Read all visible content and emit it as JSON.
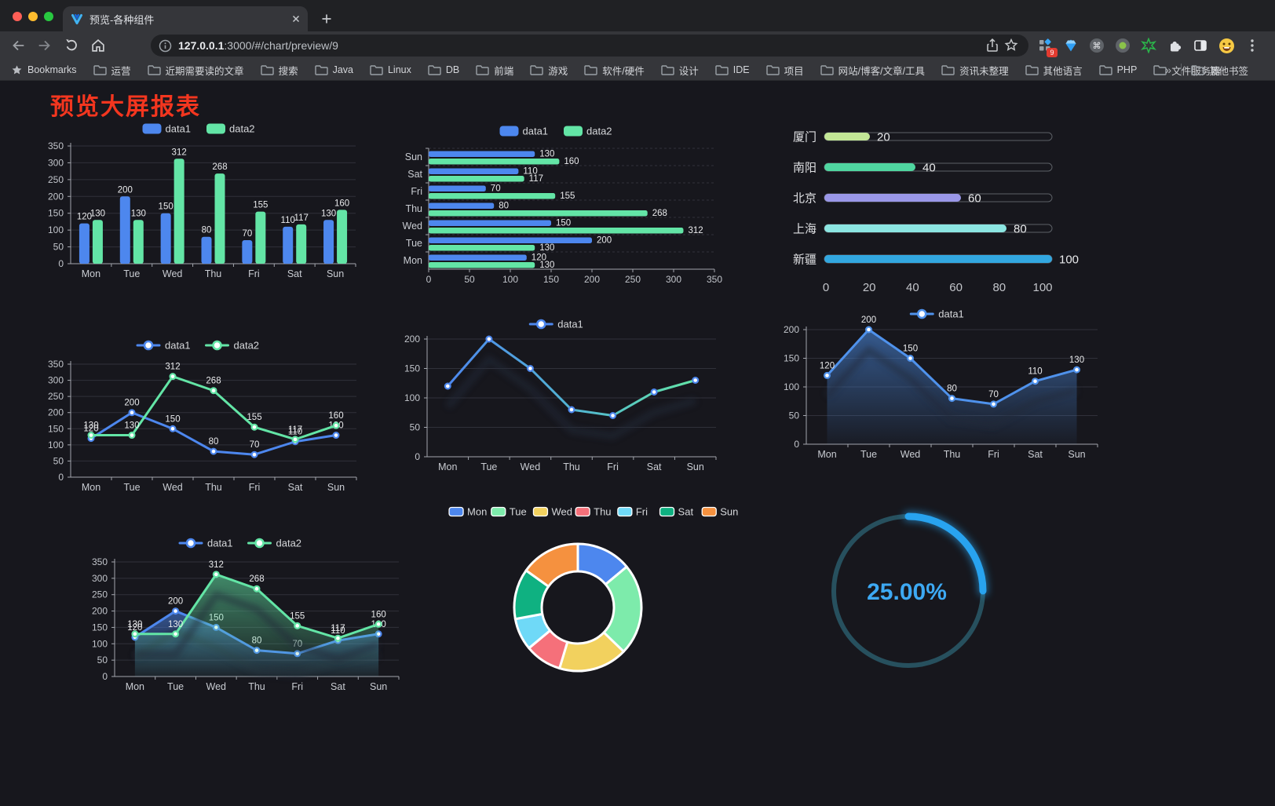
{
  "browser": {
    "tab_title": "预览-各种组件",
    "url_host": "127.0.0.1",
    "url_rest": ":3000/#/chart/preview/9",
    "extension_badge": "9",
    "bookmarks": [
      "Bookmarks",
      "运营",
      "近期需要读的文章",
      "搜索",
      "Java",
      "Linux",
      "DB",
      "前端",
      "游戏",
      "软件/硬件",
      "设计",
      "IDE",
      "项目",
      "网站/博客/文章/工具",
      "资讯未整理",
      "其他语言",
      "PHP",
      "文件服务器"
    ],
    "bookmarks_overflow": "»",
    "other_bookmarks": "其他书签"
  },
  "page": {
    "title": "预览大屏报表",
    "title_color": "#f3361f",
    "background": "#17171d"
  },
  "chart_data": [
    {
      "id": "grouped-bars",
      "type": "bar",
      "categories": [
        "Mon",
        "Tue",
        "Wed",
        "Thu",
        "Fri",
        "Sat",
        "Sun"
      ],
      "series": [
        {
          "name": "data1",
          "color": "#4d87ee",
          "values": [
            120,
            200,
            150,
            80,
            70,
            110,
            130
          ]
        },
        {
          "name": "data2",
          "color": "#63e5a6",
          "values": [
            130,
            130,
            312,
            268,
            155,
            117,
            160
          ]
        }
      ],
      "ymax": 350,
      "ystep": 50,
      "value_labels": true
    },
    {
      "id": "horizontal-bars",
      "type": "hbar",
      "categories": [
        "Mon",
        "Tue",
        "Wed",
        "Thu",
        "Fri",
        "Sat",
        "Sun"
      ],
      "series": [
        {
          "name": "data1",
          "color": "#4d87ee",
          "values": [
            120,
            200,
            150,
            80,
            70,
            110,
            130
          ]
        },
        {
          "name": "data2",
          "color": "#63e5a6",
          "values": [
            130,
            130,
            312,
            268,
            155,
            117,
            160
          ]
        }
      ],
      "xmax": 350,
      "xstep": 50,
      "value_labels": true
    },
    {
      "id": "city-progress",
      "type": "progress",
      "items": [
        {
          "label": "厦门",
          "value": 20,
          "color": "#c3e796"
        },
        {
          "label": "南阳",
          "value": 40,
          "color": "#4fd6a0"
        },
        {
          "label": "北京",
          "value": 60,
          "color": "#9a97e8"
        },
        {
          "label": "上海",
          "value": 80,
          "color": "#8ce6e2"
        },
        {
          "label": "新疆",
          "value": 100,
          "color": "#32a7e0"
        }
      ],
      "max": 100,
      "ticks": [
        0,
        20,
        40,
        60,
        80,
        100
      ]
    },
    {
      "id": "dual-line",
      "type": "line",
      "categories": [
        "Mon",
        "Tue",
        "Wed",
        "Thu",
        "Fri",
        "Sat",
        "Sun"
      ],
      "series": [
        {
          "name": "data1",
          "color": "#4d87ee",
          "values": [
            120,
            200,
            150,
            80,
            70,
            110,
            130
          ]
        },
        {
          "name": "data2",
          "color": "#63e5a6",
          "values": [
            130,
            130,
            312,
            268,
            155,
            117,
            160
          ]
        }
      ],
      "ymax": 350,
      "ystep": 50,
      "value_labels": true
    },
    {
      "id": "gradient-line",
      "type": "line",
      "categories": [
        "Mon",
        "Tue",
        "Wed",
        "Thu",
        "Fri",
        "Sat",
        "Sun"
      ],
      "series": [
        {
          "name": "data1",
          "color": "#4d87ee",
          "color2": "#63e5a6",
          "gradient": true,
          "values": [
            120,
            200,
            150,
            80,
            70,
            110,
            130
          ]
        }
      ],
      "ymax": 200,
      "ystep": 50,
      "value_labels": false,
      "shadow": true
    },
    {
      "id": "area-line",
      "type": "line",
      "categories": [
        "Mon",
        "Tue",
        "Wed",
        "Thu",
        "Fri",
        "Sat",
        "Sun"
      ],
      "series": [
        {
          "name": "data1",
          "color": "#4f92ec",
          "area": true,
          "values": [
            120,
            200,
            150,
            80,
            70,
            110,
            130
          ]
        }
      ],
      "ymax": 200,
      "ystep": 50,
      "value_labels": true,
      "shadow": true
    },
    {
      "id": "dual-area",
      "type": "line",
      "categories": [
        "Mon",
        "Tue",
        "Wed",
        "Thu",
        "Fri",
        "Sat",
        "Sun"
      ],
      "series": [
        {
          "name": "data1",
          "color": "#4d87ee",
          "area": true,
          "values": [
            120,
            200,
            150,
            80,
            70,
            110,
            130
          ]
        },
        {
          "name": "data2",
          "color": "#63e5a6",
          "area": true,
          "values": [
            130,
            130,
            312,
            268,
            155,
            117,
            160
          ]
        }
      ],
      "ymax": 350,
      "ystep": 50,
      "value_labels": true,
      "shadow": true
    },
    {
      "id": "week-donut",
      "type": "pie",
      "items": [
        {
          "label": "Mon",
          "value": 120,
          "color": "#4d87ee"
        },
        {
          "label": "Tue",
          "value": 200,
          "color": "#7debab"
        },
        {
          "label": "Wed",
          "value": 150,
          "color": "#f2d15e"
        },
        {
          "label": "Thu",
          "value": 80,
          "color": "#f5707a"
        },
        {
          "label": "Fri",
          "value": 70,
          "color": "#6fd9f7"
        },
        {
          "label": "Sat",
          "value": 110,
          "color": "#0fb181"
        },
        {
          "label": "Sun",
          "value": 130,
          "color": "#f5913f"
        }
      ]
    },
    {
      "id": "percent-gauge",
      "type": "gauge",
      "label": "25.00%",
      "percent": 25,
      "color": "#28a3ef",
      "track": "#27505e",
      "text_color": "#3da9f3"
    }
  ]
}
